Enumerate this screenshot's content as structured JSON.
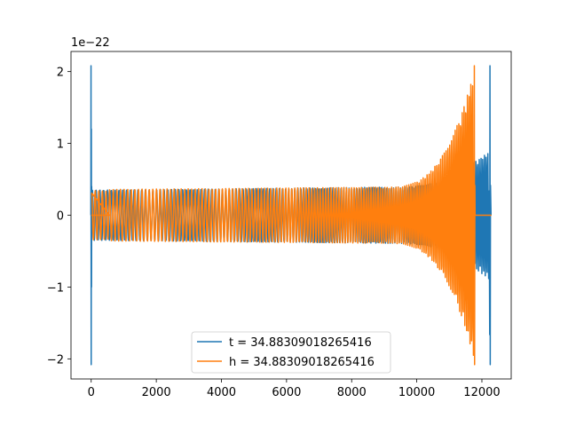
{
  "chart_data": {
    "type": "line",
    "title": "",
    "xlabel": "",
    "ylabel": "",
    "xlim": [
      -620,
      12900
    ],
    "ylim": [
      -2.28e-22,
      2.28e-22
    ],
    "y_offset_label": "1e−22",
    "x_ticks": [
      0,
      2000,
      4000,
      6000,
      8000,
      10000,
      12000
    ],
    "x_tick_labels": [
      "0",
      "2000",
      "4000",
      "6000",
      "8000",
      "10000",
      "12000"
    ],
    "y_ticks": [
      -2e-22,
      -1e-22,
      0,
      1e-22,
      2e-22
    ],
    "y_tick_labels": [
      "−2",
      "−1",
      "0",
      "1",
      "2"
    ],
    "grid": false,
    "legend_position": "lower-center",
    "series": [
      {
        "name": "t = 34.88309018265416",
        "color": "#1f77b4",
        "x_start": 0,
        "x_end": 12280,
        "zero_flat_until": 0,
        "initial_spike_peak": 2.08e-22,
        "steady_amplitude_start": 3.5e-23,
        "steady_amplitude_mid": 3.9e-23,
        "amplitude_at_11800": 7.5e-23,
        "final_spike_peak": 2.08e-22,
        "final_spike_x": 12260,
        "flat_after_x": 12280
      },
      {
        "name": "h = 34.88309018265416",
        "color": "#ff7f0e",
        "x_start": 0,
        "x_end": 12280,
        "zero_flat_until": 560,
        "initial_spike_peak": 0,
        "steady_amplitude_start": 3.6e-23,
        "steady_amplitude_mid": 3.9e-23,
        "amplitude_at_11800": 2.08e-22,
        "final_spike_peak": 2.08e-22,
        "final_spike_x": 11780,
        "flat_after_x": 11790
      }
    ]
  }
}
